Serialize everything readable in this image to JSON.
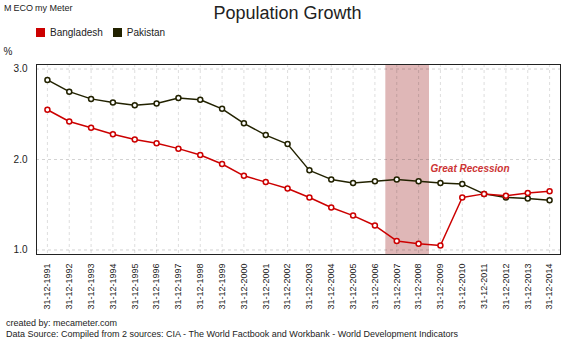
{
  "chart_data": {
    "type": "line",
    "title": "Population Growth",
    "y_label": "%",
    "categories": [
      "31-12-1991",
      "31-12-1992",
      "31-12-1993",
      "31-12-1994",
      "31-12-1995",
      "31-12-1996",
      "31-12-1997",
      "31-12-1998",
      "31-12-1999",
      "31-12-2000",
      "31-12-2001",
      "31-12-2002",
      "31-12-2003",
      "31-12-2004",
      "31-12-2005",
      "31-12-2006",
      "31-12-2007",
      "31-12-2008",
      "31-12-2009",
      "31-12-2010",
      "31-12-2011",
      "31-12-2012",
      "31-12-2013",
      "31-12-2014"
    ],
    "series": [
      {
        "name": "Bangladesh",
        "color": "#cc0000",
        "values": [
          2.55,
          2.42,
          2.35,
          2.28,
          2.22,
          2.18,
          2.12,
          2.05,
          1.95,
          1.82,
          1.75,
          1.68,
          1.58,
          1.47,
          1.38,
          1.27,
          1.1,
          1.07,
          1.05,
          1.58,
          1.62,
          1.6,
          1.63,
          1.65
        ]
      },
      {
        "name": "Pakistan",
        "color": "#222200",
        "values": [
          2.88,
          2.75,
          2.67,
          2.63,
          2.6,
          2.62,
          2.68,
          2.66,
          2.56,
          2.4,
          2.27,
          2.17,
          1.88,
          1.78,
          1.74,
          1.76,
          1.78,
          1.76,
          1.74,
          1.73,
          1.62,
          1.58,
          1.57,
          1.55
        ]
      }
    ],
    "ylim": [
      0.95,
      3.05
    ],
    "yticks": [
      1,
      2,
      3
    ],
    "grid": true,
    "legend": "upper left",
    "marker": "circle",
    "line_style": "solid",
    "shaded_span": {
      "from": "31-12-2007",
      "to": "31-12-2008",
      "color": "#c07070"
    },
    "annotations": [
      {
        "text": "Great Recession",
        "x": "31-12-2008",
        "y": 1.9,
        "color": "#cc3333"
      }
    ],
    "logo": [
      "M",
      "ECO",
      "my Meter"
    ],
    "footer": [
      "created by: mecameter.com",
      "Data Source: Compiled from 2 sources: CIA - The World Factbook and Workbank - World Development Indicators"
    ]
  }
}
